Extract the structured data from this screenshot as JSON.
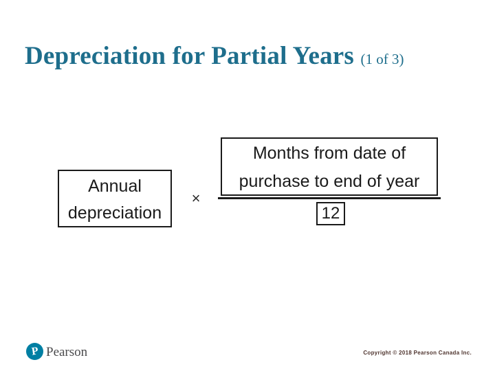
{
  "slide": {
    "title": "Depreciation for Partial Years",
    "title_suffix": "(1 of 3)"
  },
  "formula": {
    "annual_box": {
      "line1": "Annual",
      "line2": "depreciation"
    },
    "operator": "×",
    "numerator_box": {
      "line1": "Months from date of",
      "line2": "purchase to end of year"
    },
    "denominator": "12"
  },
  "footer": {
    "logo_letter": "P",
    "brand": "Pearson",
    "copyright": "Copyright © 2018 Pearson Canada Inc."
  },
  "colors": {
    "title_teal": "#1e6e8c",
    "pearson_teal": "#007fa3",
    "formula_ink": "#1a1a1a",
    "copyright_maroon": "#4e332d"
  }
}
